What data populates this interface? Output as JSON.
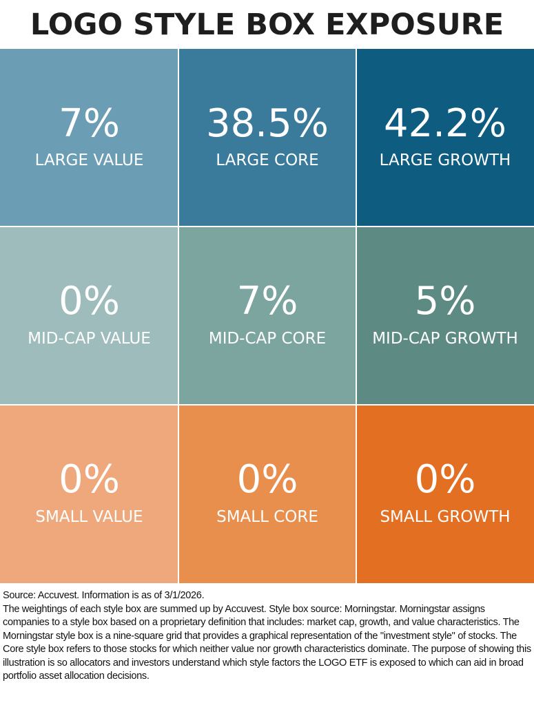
{
  "title": "LOGO STYLE BOX EXPOSURE",
  "chart_data": {
    "type": "heatmap",
    "title": "LOGO STYLE BOX EXPOSURE",
    "cells": [
      {
        "value": "7%",
        "label": "LARGE VALUE",
        "color": "#6b9db5"
      },
      {
        "value": "38.5%",
        "label": "LARGE CORE",
        "color": "#3a7b9b"
      },
      {
        "value": "42.2%",
        "label": "LARGE GROWTH",
        "color": "#0e5c80"
      },
      {
        "value": "0%",
        "label": "MID-CAP VALUE",
        "color": "#9dbcbb"
      },
      {
        "value": "7%",
        "label": "MID-CAP CORE",
        "color": "#7ba59e"
      },
      {
        "value": "5%",
        "label": "MID-CAP GROWTH",
        "color": "#5d8b83"
      },
      {
        "value": "0%",
        "label": "SMALL VALUE",
        "color": "#eea87c"
      },
      {
        "value": "0%",
        "label": "SMALL CORE",
        "color": "#e98f4e"
      },
      {
        "value": "0%",
        "label": "SMALL GROWTH",
        "color": "#e36f22"
      }
    ]
  },
  "notes": {
    "source": "Source: Accuvest. Information is as of 3/1/2026.",
    "body": "The weightings of each style box are summed up by Accuvest. Style box source: Morningstar. Morningstar assigns companies to a style box based on a proprietary definition that includes: market cap, growth, and value characteristics. The Morningstar style box is a nine-square grid that provides a graphical representation of the \"investment style\" of stocks. The Core style box refers to those stocks for which neither value nor growth characteristics dominate. The purpose of showing this illustration is so allocators and investors understand which style factors the LOGO ETF is exposed to which can aid in broad portfolio asset allocation decisions."
  }
}
